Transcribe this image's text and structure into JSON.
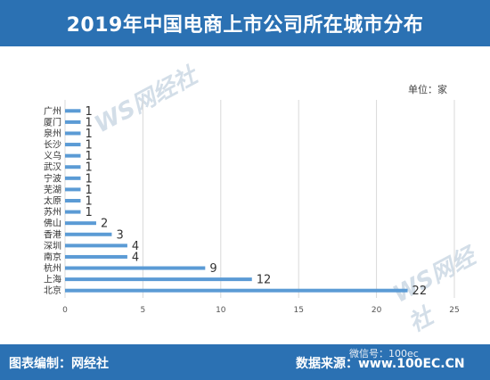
{
  "header": {
    "title": "2019年中国电商上市公司所在城市分布"
  },
  "unit_label": "单位：家",
  "footer": {
    "left": "图表编制：网经社",
    "right": "数据来源：www.100EC.CN"
  },
  "watermark": {
    "text": "WS网经社"
  },
  "wechat_overlay": "微信号：100ec",
  "colors": {
    "bar": "#5b9bd5",
    "header": "#2b71b3",
    "axis": "#d9d9d9"
  },
  "chart_data": {
    "type": "bar",
    "orientation": "horizontal",
    "title": "2019年中国电商上市公司所在城市分布",
    "categories": [
      "广州",
      "厦门",
      "泉州",
      "长沙",
      "义乌",
      "武汉",
      "宁波",
      "芜湖",
      "太原",
      "苏州",
      "佛山",
      "香港",
      "深圳",
      "南京",
      "杭州",
      "上海",
      "北京"
    ],
    "values": [
      1,
      1,
      1,
      1,
      1,
      1,
      1,
      1,
      1,
      1,
      2,
      3,
      4,
      4,
      9,
      12,
      22
    ],
    "xlim": [
      0,
      25
    ],
    "xticks": [
      0,
      5,
      10,
      15,
      20,
      25
    ],
    "grid": true,
    "unit": "单位：家"
  }
}
